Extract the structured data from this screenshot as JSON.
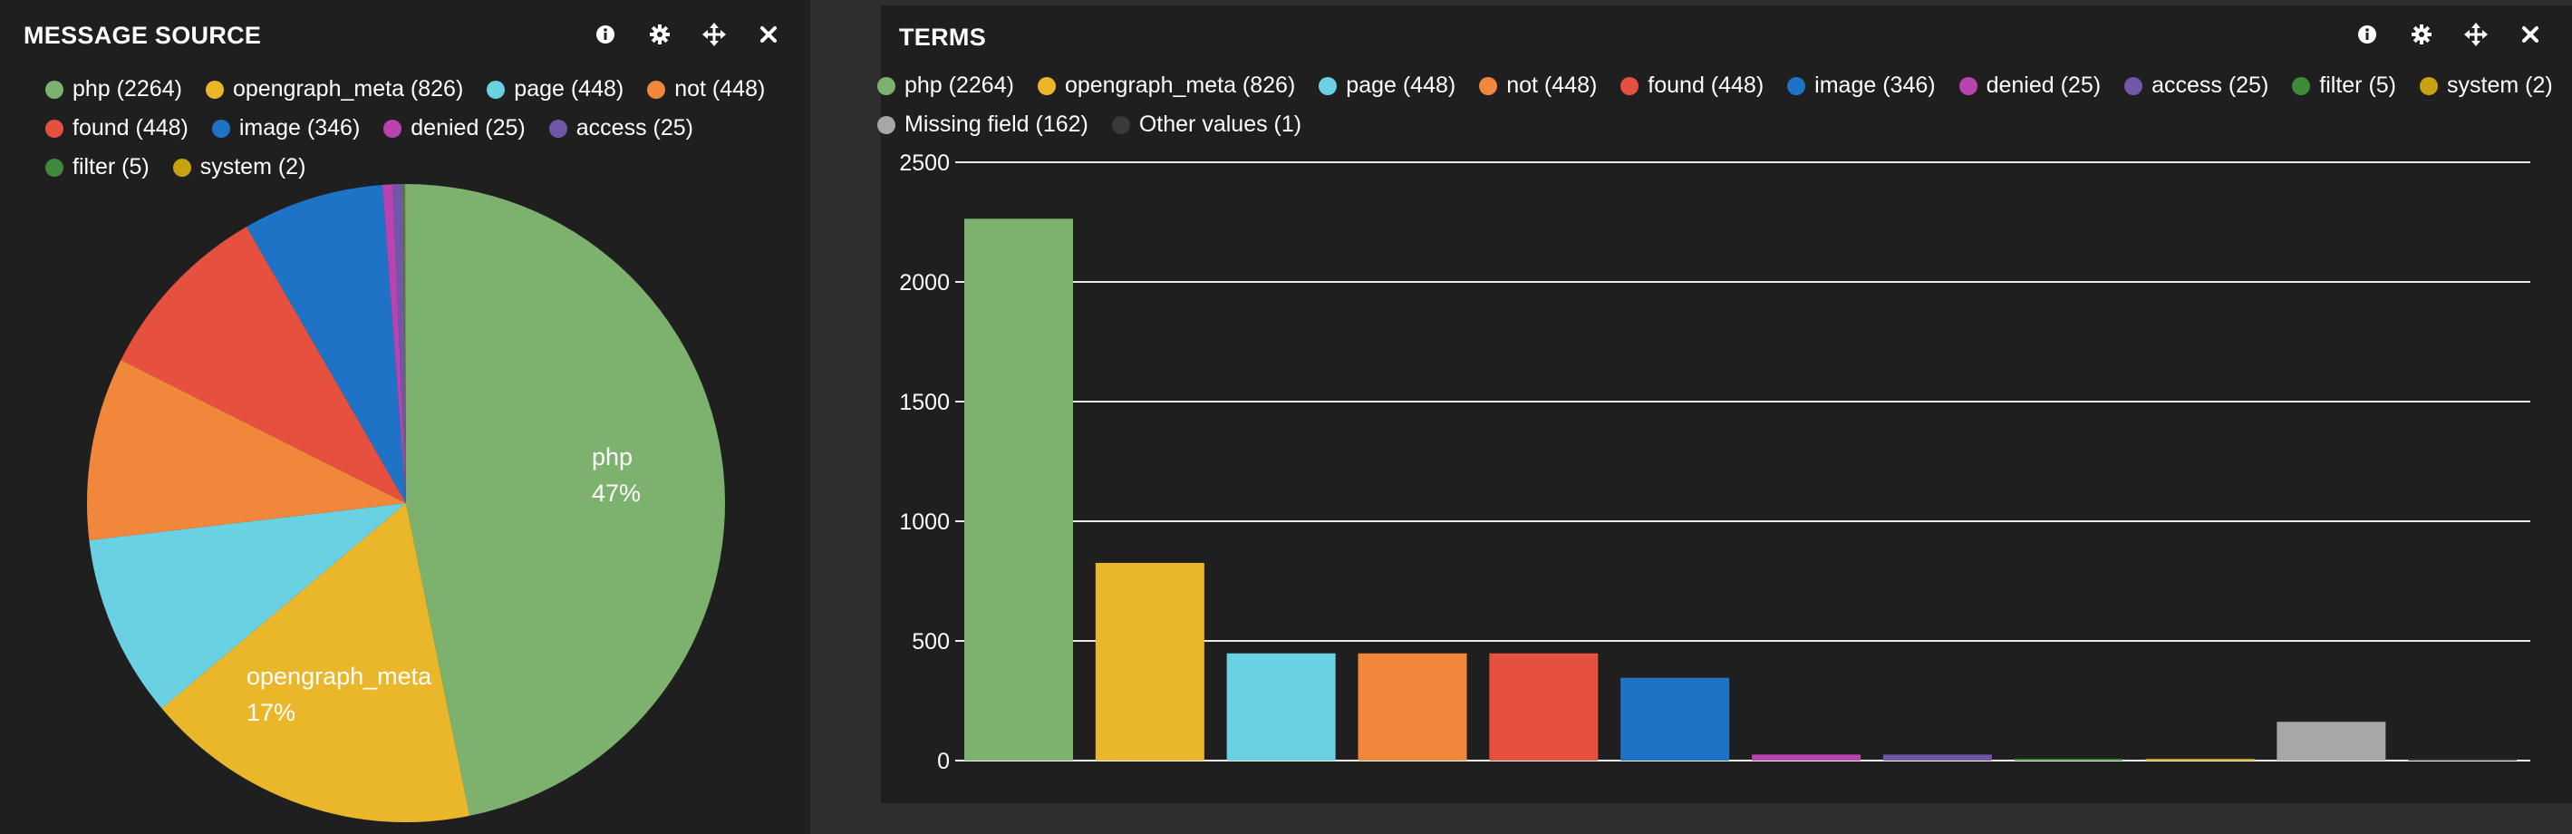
{
  "panels": {
    "left": {
      "title": "MESSAGE SOURCE"
    },
    "right": {
      "title": "TERMS"
    }
  },
  "tools": [
    {
      "name": "info-icon",
      "glyph": "info"
    },
    {
      "name": "gear-icon",
      "glyph": "gear"
    },
    {
      "name": "move-icon",
      "glyph": "move"
    },
    {
      "name": "close-icon",
      "glyph": "close"
    }
  ],
  "colors": {
    "php": "#7db26e",
    "opengraph_meta": "#eab72a",
    "page": "#6ad1e3",
    "not": "#f0873a",
    "found": "#e5503f",
    "image": "#1e73c6",
    "denied": "#b944b1",
    "access": "#7157a8",
    "filter": "#3f8a3a",
    "system": "#c9a212",
    "missing": "#a7a7a7",
    "other": "#3a3a3a",
    "panel_bg": "#1f1f1f",
    "page_bg": "#2e2e2e"
  },
  "legend_left": [
    {
      "label": "php (2264)",
      "color": "#7db26e"
    },
    {
      "label": "opengraph_meta (826)",
      "color": "#eab72a"
    },
    {
      "label": "page (448)",
      "color": "#6ad1e3"
    },
    {
      "label": "not (448)",
      "color": "#f0873a"
    },
    {
      "label": "found (448)",
      "color": "#e5503f"
    },
    {
      "label": "image (346)",
      "color": "#1e73c6"
    },
    {
      "label": "denied (25)",
      "color": "#b944b1"
    },
    {
      "label": "access (25)",
      "color": "#7157a8"
    },
    {
      "label": "filter (5)",
      "color": "#3f8a3a"
    },
    {
      "label": "system (2)",
      "color": "#c9a212"
    }
  ],
  "legend_right": [
    {
      "label": "php (2264)",
      "color": "#7db26e"
    },
    {
      "label": "opengraph_meta (826)",
      "color": "#eab72a"
    },
    {
      "label": "page (448)",
      "color": "#6ad1e3"
    },
    {
      "label": "not (448)",
      "color": "#f0873a"
    },
    {
      "label": "found (448)",
      "color": "#e5503f"
    },
    {
      "label": "image (346)",
      "color": "#1e73c6"
    },
    {
      "label": "denied (25)",
      "color": "#b944b1"
    },
    {
      "label": "access (25)",
      "color": "#7157a8"
    },
    {
      "label": "filter (5)",
      "color": "#3f8a3a"
    },
    {
      "label": "system (2)",
      "color": "#c9a212"
    },
    {
      "label": "Missing field (162)",
      "color": "#a7a7a7"
    },
    {
      "label": "Other values (1)",
      "color": "#3a3a3a"
    }
  ],
  "chart_data": [
    {
      "type": "pie",
      "title": "MESSAGE SOURCE",
      "slices": [
        {
          "name": "php",
          "value": 2264,
          "color": "#7db26e",
          "label": "php",
          "pct_label": "47%"
        },
        {
          "name": "opengraph_meta",
          "value": 826,
          "color": "#eab72a",
          "label": "opengraph_meta",
          "pct_label": "17%"
        },
        {
          "name": "page",
          "value": 448,
          "color": "#6ad1e3"
        },
        {
          "name": "not",
          "value": 448,
          "color": "#f0873a"
        },
        {
          "name": "found",
          "value": 448,
          "color": "#e5503f"
        },
        {
          "name": "image",
          "value": 346,
          "color": "#1e73c6"
        },
        {
          "name": "denied",
          "value": 25,
          "color": "#b944b1"
        },
        {
          "name": "access",
          "value": 25,
          "color": "#7157a8"
        },
        {
          "name": "filter",
          "value": 5,
          "color": "#3f8a3a"
        },
        {
          "name": "system",
          "value": 2,
          "color": "#c9a212"
        }
      ]
    },
    {
      "type": "bar",
      "title": "TERMS",
      "categories": [
        "php",
        "opengraph_meta",
        "page",
        "not",
        "found",
        "image",
        "denied",
        "access",
        "filter",
        "system",
        "Missing field",
        "Other values"
      ],
      "values": [
        2264,
        826,
        448,
        448,
        448,
        346,
        25,
        25,
        5,
        2,
        162,
        1
      ],
      "colors": [
        "#7db26e",
        "#eab72a",
        "#6ad1e3",
        "#f0873a",
        "#e5503f",
        "#1e73c6",
        "#b944b1",
        "#7157a8",
        "#3f8a3a",
        "#c9a212",
        "#a7a7a7",
        "#3a3a3a"
      ],
      "ylim": [
        0,
        2500
      ],
      "yticks": [
        0,
        500,
        1000,
        1500,
        2000,
        2500
      ],
      "grid": true
    }
  ]
}
